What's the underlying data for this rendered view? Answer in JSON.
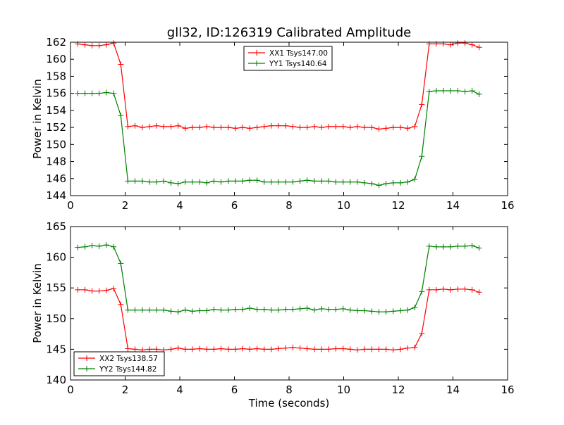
{
  "chart_data": [
    {
      "type": "line",
      "title": "gll32, ID:126319 Calibrated Amplitude",
      "xlabel": "",
      "ylabel": "Power in Kelvin",
      "xlim": [
        0,
        16
      ],
      "ylim": [
        144,
        162
      ],
      "xticks": [
        "0",
        "2",
        "4",
        "6",
        "8",
        "10",
        "12",
        "14",
        "16"
      ],
      "yticks": [
        "144",
        "146",
        "148",
        "150",
        "152",
        "154",
        "156",
        "158",
        "160",
        "162"
      ],
      "legend_position": "top-center",
      "x": [
        0.26,
        0.53,
        0.79,
        1.05,
        1.31,
        1.58,
        1.84,
        2.1,
        2.36,
        2.63,
        2.89,
        3.15,
        3.41,
        3.68,
        3.94,
        4.2,
        4.46,
        4.73,
        4.99,
        5.25,
        5.51,
        5.78,
        6.04,
        6.3,
        6.56,
        6.83,
        7.09,
        7.35,
        7.61,
        7.88,
        8.14,
        8.4,
        8.66,
        8.93,
        9.19,
        9.45,
        9.71,
        9.98,
        10.24,
        10.5,
        10.76,
        11.03,
        11.29,
        11.55,
        11.81,
        12.08,
        12.34,
        12.6,
        12.86,
        13.13,
        13.39,
        13.65,
        13.91,
        14.18,
        14.44,
        14.7,
        14.96
      ],
      "series": [
        {
          "name": "XX1 Tsys147.00",
          "color": "#ff0000",
          "values": [
            161.8,
            161.7,
            161.6,
            161.6,
            161.7,
            161.9,
            159.4,
            152.1,
            152.2,
            152.0,
            152.1,
            152.2,
            152.1,
            152.1,
            152.2,
            151.9,
            152.0,
            152.0,
            152.1,
            152.0,
            152.0,
            152.0,
            151.9,
            152.0,
            151.9,
            152.0,
            152.1,
            152.2,
            152.2,
            152.2,
            152.1,
            152.0,
            152.0,
            152.1,
            152.0,
            152.1,
            152.1,
            152.1,
            152.0,
            152.1,
            152.0,
            152.0,
            151.8,
            151.9,
            152.0,
            152.0,
            151.9,
            152.1,
            154.7,
            161.8,
            161.8,
            161.8,
            161.7,
            161.9,
            161.9,
            161.7,
            161.4
          ]
        },
        {
          "name": "YY1 Tsys140.64",
          "color": "#008000",
          "values": [
            156.0,
            156.0,
            156.0,
            156.0,
            156.1,
            156.0,
            153.4,
            145.7,
            145.7,
            145.7,
            145.6,
            145.6,
            145.7,
            145.5,
            145.4,
            145.6,
            145.6,
            145.6,
            145.5,
            145.7,
            145.6,
            145.7,
            145.7,
            145.7,
            145.8,
            145.8,
            145.6,
            145.6,
            145.6,
            145.6,
            145.6,
            145.7,
            145.8,
            145.7,
            145.7,
            145.7,
            145.6,
            145.6,
            145.6,
            145.6,
            145.5,
            145.4,
            145.2,
            145.4,
            145.5,
            145.5,
            145.6,
            145.9,
            148.6,
            156.2,
            156.3,
            156.3,
            156.3,
            156.3,
            156.2,
            156.3,
            155.9
          ]
        }
      ]
    },
    {
      "type": "line",
      "title": "",
      "xlabel": "Time (seconds)",
      "ylabel": "Power in Kelvin",
      "xlim": [
        0,
        16
      ],
      "ylim": [
        140,
        165
      ],
      "xticks": [
        "0",
        "2",
        "4",
        "6",
        "8",
        "10",
        "12",
        "14",
        "16"
      ],
      "yticks": [
        "140",
        "145",
        "150",
        "155",
        "160",
        "165"
      ],
      "legend_position": "bottom-left",
      "x": [
        0.26,
        0.53,
        0.79,
        1.05,
        1.31,
        1.58,
        1.84,
        2.1,
        2.36,
        2.63,
        2.89,
        3.15,
        3.41,
        3.68,
        3.94,
        4.2,
        4.46,
        4.73,
        4.99,
        5.25,
        5.51,
        5.78,
        6.04,
        6.3,
        6.56,
        6.83,
        7.09,
        7.35,
        7.61,
        7.88,
        8.14,
        8.4,
        8.66,
        8.93,
        9.19,
        9.45,
        9.71,
        9.98,
        10.24,
        10.5,
        10.76,
        11.03,
        11.29,
        11.55,
        11.81,
        12.08,
        12.34,
        12.6,
        12.86,
        13.13,
        13.39,
        13.65,
        13.91,
        14.18,
        14.44,
        14.7,
        14.96
      ],
      "series": [
        {
          "name": "XX2 Tsys138.57",
          "color": "#ff0000",
          "values": [
            154.7,
            154.7,
            154.5,
            154.5,
            154.6,
            154.9,
            152.3,
            145.1,
            145.0,
            144.9,
            145.0,
            145.0,
            144.9,
            145.0,
            145.2,
            145.0,
            145.0,
            145.1,
            145.0,
            145.0,
            145.1,
            145.0,
            145.0,
            145.1,
            145.0,
            145.1,
            145.0,
            145.0,
            145.1,
            145.2,
            145.3,
            145.2,
            145.1,
            145.0,
            145.0,
            145.0,
            145.1,
            145.1,
            145.0,
            144.9,
            145.0,
            145.0,
            145.0,
            145.0,
            144.9,
            145.0,
            145.2,
            145.3,
            147.6,
            154.7,
            154.7,
            154.8,
            154.7,
            154.8,
            154.8,
            154.7,
            154.3
          ]
        },
        {
          "name": "YY2 Tsys144.82",
          "color": "#008000",
          "values": [
            161.6,
            161.7,
            161.9,
            161.8,
            162.0,
            161.7,
            159.0,
            151.4,
            151.4,
            151.4,
            151.4,
            151.4,
            151.4,
            151.2,
            151.1,
            151.4,
            151.2,
            151.3,
            151.3,
            151.5,
            151.4,
            151.4,
            151.5,
            151.5,
            151.7,
            151.5,
            151.5,
            151.4,
            151.4,
            151.5,
            151.5,
            151.6,
            151.7,
            151.4,
            151.6,
            151.5,
            151.5,
            151.6,
            151.4,
            151.3,
            151.3,
            151.2,
            151.1,
            151.1,
            151.2,
            151.3,
            151.4,
            151.8,
            154.4,
            161.8,
            161.7,
            161.7,
            161.7,
            161.8,
            161.8,
            161.9,
            161.5
          ]
        }
      ]
    }
  ]
}
